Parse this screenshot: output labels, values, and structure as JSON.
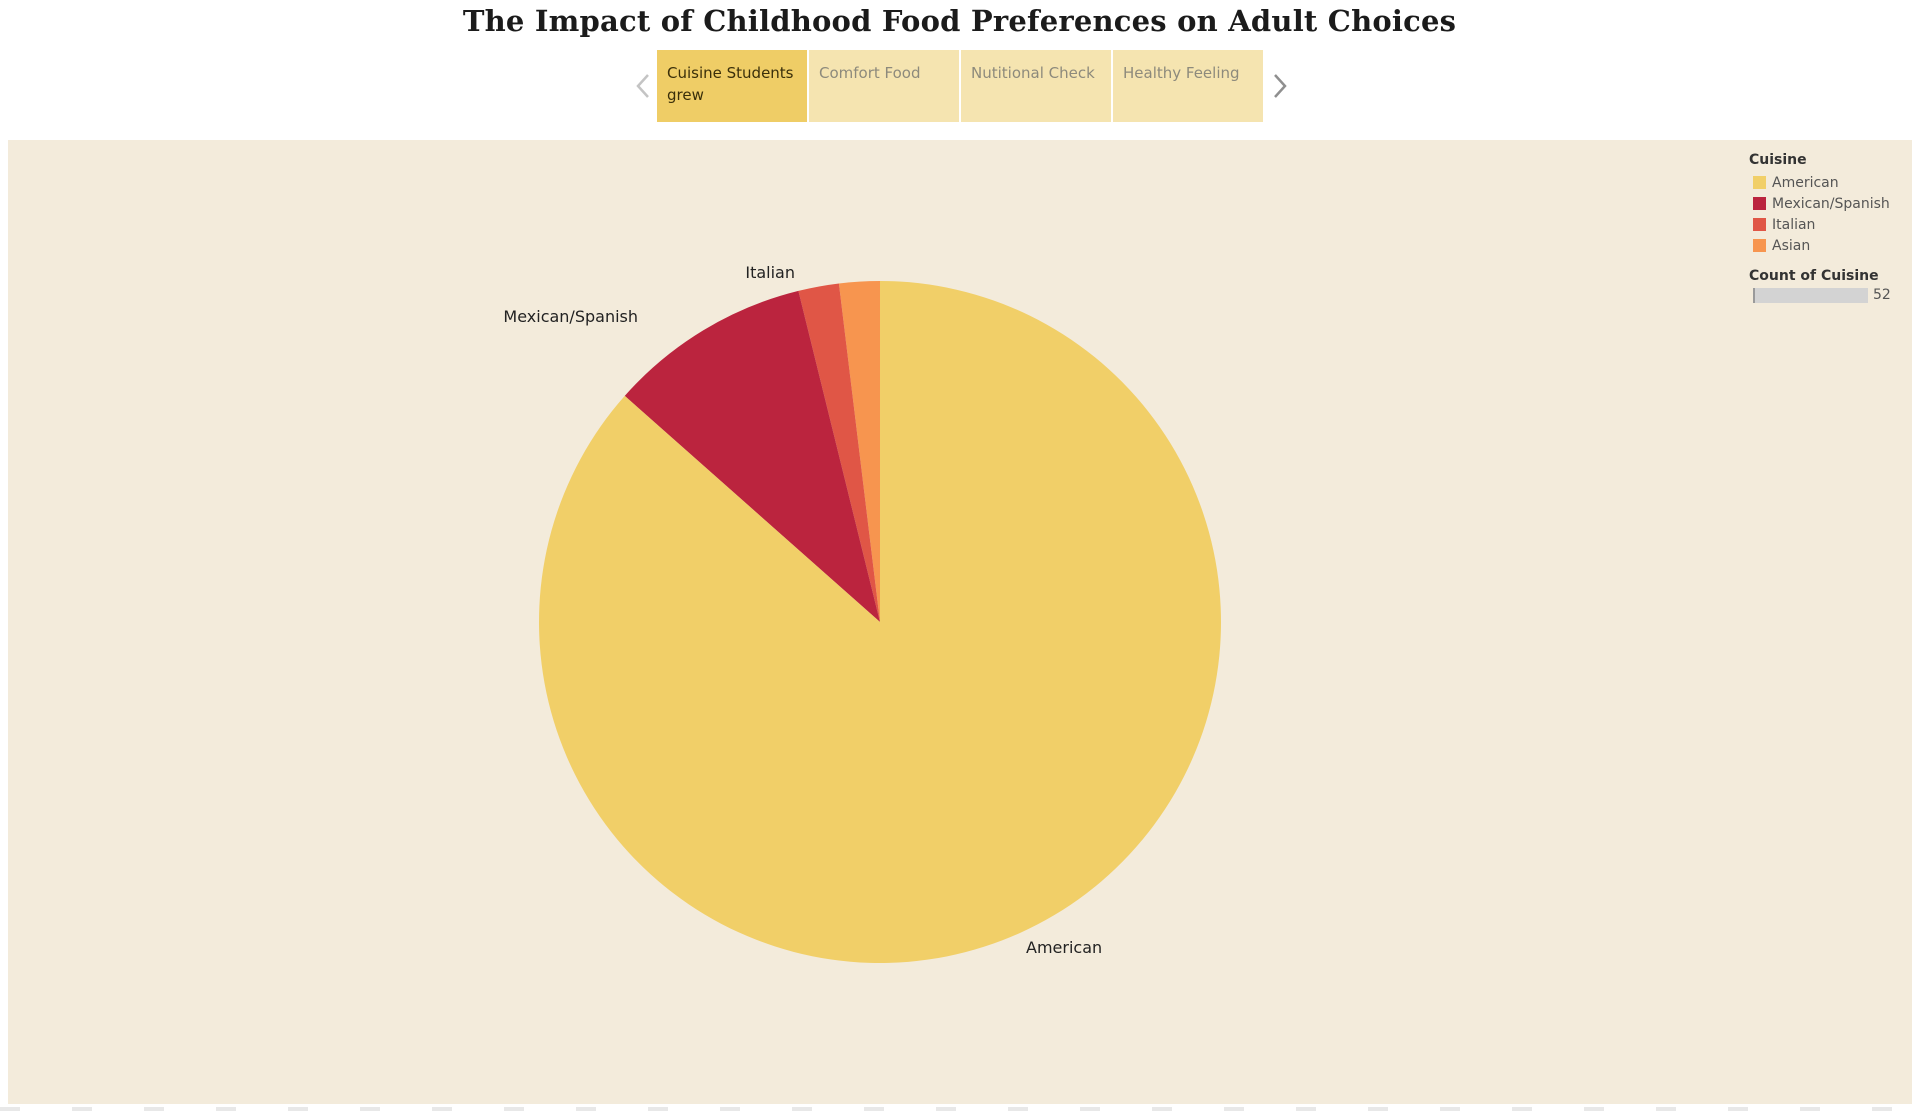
{
  "page": {
    "title": "The Impact of Childhood Food Preferences on Adult Choices"
  },
  "story": {
    "prev_icon": "chevron-left-icon",
    "next_icon": "chevron-right-icon",
    "tabs": [
      {
        "label": "Cuisine Students grew",
        "active": true
      },
      {
        "label": "Comfort Food",
        "active": false
      },
      {
        "label": "Nutitional Check",
        "active": false
      },
      {
        "label": "Healthy Feeling",
        "active": false
      }
    ]
  },
  "colors": {
    "background": "#f3ebdb",
    "tab_active": "#efcd66",
    "tab_inactive": "#f5e4b0",
    "American": "#f1cf68",
    "Mexican/Spanish": "#bb243e",
    "Italian": "#e05646",
    "Asian": "#f7954f"
  },
  "legend": {
    "title": "Cuisine",
    "items": [
      "American",
      "Mexican/Spanish",
      "Italian",
      "Asian"
    ],
    "size_title": "Count of Cuisine",
    "size_value": "52"
  },
  "chart_data": {
    "type": "pie",
    "categories": [
      "American",
      "Mexican/Spanish",
      "Italian",
      "Asian"
    ],
    "values": [
      45,
      5,
      1,
      1
    ],
    "slice_labels": [
      "American",
      "Mexican/Spanish",
      "Italian",
      ""
    ],
    "legend_position": "top-right"
  }
}
